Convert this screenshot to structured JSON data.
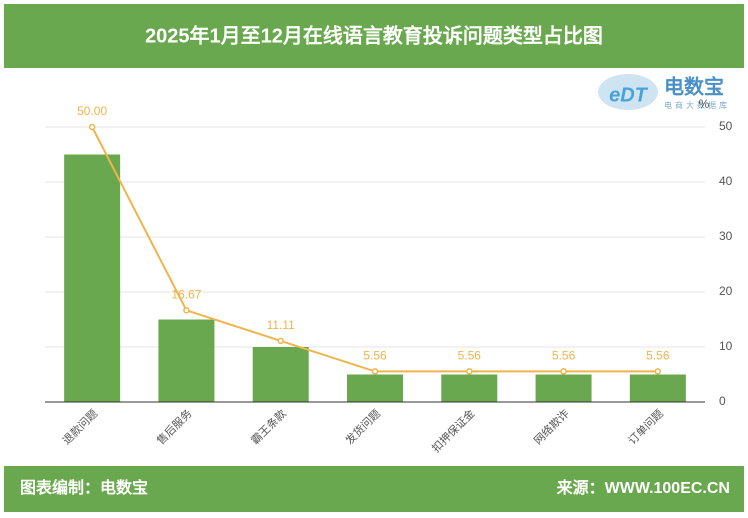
{
  "header": {
    "title": "2025年1月至12月在线语言教育投诉问题类型占比图"
  },
  "logo": {
    "mark": "eDT",
    "name": "电数宝",
    "tagline": "电商大数据库"
  },
  "chart_data": {
    "type": "bar",
    "categories": [
      "退款问题",
      "售后服务",
      "霸王条款",
      "发货问题",
      "扣押保证金",
      "网络欺诈",
      "订单问题"
    ],
    "series": [
      {
        "type": "bar",
        "color": "#6aa84f",
        "values": [
          45,
          15,
          10,
          5,
          5,
          5,
          5
        ]
      },
      {
        "type": "line",
        "color": "#f0b44c",
        "values": [
          50,
          16.67,
          11.11,
          5.56,
          5.56,
          5.56,
          5.56
        ],
        "value_labels": [
          "50.00",
          "16.67",
          "11.11",
          "5.56",
          "5.56",
          "5.56",
          "5.56"
        ]
      }
    ],
    "y_unit": "%",
    "ylim": [
      0,
      50
    ],
    "yticks": [
      0,
      10,
      20,
      30,
      40,
      50
    ],
    "grid": true
  },
  "footer": {
    "left": "图表编制：电数宝",
    "right": "来源：WWW.100EC.CN"
  }
}
